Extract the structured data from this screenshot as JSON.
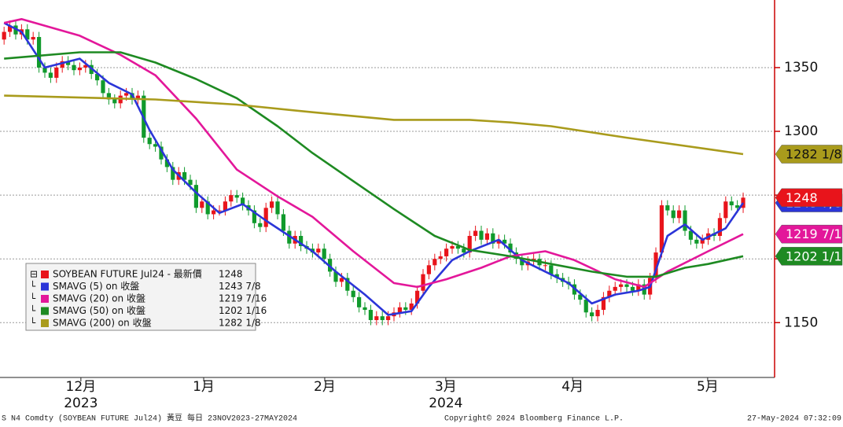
{
  "chart_data": {
    "type": "candlestick",
    "name": "SOYBEAN FUTURE Jul24 - 最新價",
    "up_color": "#e8141b",
    "down_color": "#109a2c",
    "open": [
      1372,
      1378,
      1383,
      1376,
      1380,
      1372,
      1374,
      1350,
      1346,
      1342,
      1350,
      1355,
      1352,
      1348,
      1350,
      1352,
      1345,
      1340,
      1330,
      1325,
      1322,
      1328,
      1330,
      1325,
      1328,
      1295,
      1290,
      1288,
      1278,
      1272,
      1262,
      1268,
      1262,
      1258,
      1240,
      1245,
      1235,
      1238,
      1238,
      1245,
      1250,
      1248,
      1242,
      1238,
      1228,
      1225,
      1240,
      1245,
      1235,
      1222,
      1212,
      1218,
      1210,
      1208,
      1205,
      1208,
      1200,
      1190,
      1182,
      1185,
      1175,
      1170,
      1162,
      1160,
      1152,
      1155,
      1152,
      1155,
      1158,
      1162,
      1160,
      1165,
      1175,
      1188,
      1195,
      1200,
      1202,
      1208,
      1210,
      1208,
      1205,
      1218,
      1222,
      1215,
      1220,
      1212,
      1215,
      1212,
      1205,
      1200,
      1195,
      1198,
      1200,
      1195,
      1195,
      1188,
      1185,
      1182,
      1180,
      1172,
      1168,
      1158,
      1155,
      1160,
      1170,
      1175,
      1178,
      1180,
      1178,
      1175,
      1180,
      1172,
      1185,
      1205,
      1242,
      1238,
      1232,
      1238,
      1222,
      1215,
      1212,
      1215,
      1220,
      1218,
      1232,
      1245,
      1242,
      1240
    ],
    "high": [
      1382,
      1387,
      1387,
      1384,
      1384,
      1378,
      1378,
      1354,
      1350,
      1354,
      1359,
      1359,
      1356,
      1354,
      1356,
      1356,
      1349,
      1344,
      1334,
      1329,
      1332,
      1334,
      1334,
      1332,
      1332,
      1299,
      1294,
      1292,
      1282,
      1276,
      1272,
      1272,
      1266,
      1262,
      1249,
      1249,
      1242,
      1242,
      1249,
      1254,
      1254,
      1252,
      1246,
      1242,
      1232,
      1244,
      1249,
      1249,
      1239,
      1226,
      1222,
      1222,
      1214,
      1212,
      1212,
      1212,
      1204,
      1194,
      1189,
      1189,
      1179,
      1174,
      1166,
      1164,
      1159,
      1159,
      1159,
      1162,
      1166,
      1166,
      1169,
      1179,
      1192,
      1199,
      1204,
      1206,
      1212,
      1214,
      1214,
      1212,
      1222,
      1226,
      1226,
      1224,
      1224,
      1219,
      1219,
      1216,
      1209,
      1204,
      1202,
      1204,
      1204,
      1199,
      1199,
      1192,
      1189,
      1186,
      1184,
      1176,
      1172,
      1162,
      1164,
      1174,
      1179,
      1182,
      1184,
      1184,
      1182,
      1184,
      1184,
      1189,
      1209,
      1246,
      1246,
      1242,
      1242,
      1242,
      1226,
      1219,
      1219,
      1224,
      1224,
      1236,
      1249,
      1249,
      1246,
      1252
    ],
    "low": [
      1368,
      1374,
      1372,
      1372,
      1368,
      1368,
      1346,
      1342,
      1338,
      1338,
      1346,
      1348,
      1344,
      1344,
      1346,
      1341,
      1336,
      1326,
      1321,
      1318,
      1318,
      1324,
      1321,
      1321,
      1291,
      1286,
      1284,
      1274,
      1268,
      1258,
      1258,
      1258,
      1254,
      1236,
      1236,
      1231,
      1231,
      1234,
      1234,
      1241,
      1244,
      1238,
      1234,
      1224,
      1221,
      1221,
      1236,
      1231,
      1218,
      1208,
      1208,
      1206,
      1204,
      1201,
      1201,
      1196,
      1186,
      1178,
      1178,
      1171,
      1166,
      1158,
      1156,
      1148,
      1148,
      1148,
      1148,
      1151,
      1154,
      1156,
      1156,
      1161,
      1171,
      1184,
      1191,
      1196,
      1198,
      1204,
      1204,
      1201,
      1201,
      1214,
      1211,
      1211,
      1208,
      1208,
      1208,
      1201,
      1196,
      1191,
      1191,
      1194,
      1191,
      1191,
      1184,
      1181,
      1178,
      1176,
      1168,
      1164,
      1154,
      1151,
      1151,
      1156,
      1166,
      1171,
      1174,
      1174,
      1171,
      1171,
      1168,
      1168,
      1181,
      1201,
      1234,
      1228,
      1228,
      1218,
      1211,
      1208,
      1208,
      1211,
      1214,
      1214,
      1228,
      1238,
      1236,
      1236
    ],
    "close": [
      1378,
      1383,
      1376,
      1380,
      1372,
      1374,
      1350,
      1346,
      1342,
      1350,
      1355,
      1352,
      1348,
      1350,
      1352,
      1345,
      1340,
      1330,
      1325,
      1322,
      1328,
      1330,
      1325,
      1328,
      1295,
      1290,
      1288,
      1278,
      1272,
      1262,
      1268,
      1262,
      1258,
      1240,
      1245,
      1235,
      1238,
      1238,
      1245,
      1250,
      1248,
      1242,
      1238,
      1228,
      1225,
      1240,
      1245,
      1235,
      1222,
      1212,
      1218,
      1210,
      1208,
      1205,
      1208,
      1200,
      1190,
      1182,
      1185,
      1175,
      1170,
      1162,
      1160,
      1152,
      1155,
      1152,
      1155,
      1158,
      1162,
      1160,
      1165,
      1175,
      1188,
      1195,
      1200,
      1202,
      1208,
      1210,
      1208,
      1205,
      1218,
      1222,
      1215,
      1220,
      1212,
      1215,
      1212,
      1205,
      1200,
      1195,
      1198,
      1200,
      1195,
      1195,
      1188,
      1185,
      1182,
      1180,
      1172,
      1168,
      1158,
      1155,
      1160,
      1170,
      1175,
      1178,
      1180,
      1178,
      1175,
      1180,
      1172,
      1185,
      1205,
      1242,
      1238,
      1232,
      1238,
      1222,
      1215,
      1212,
      1215,
      1220,
      1218,
      1232,
      1245,
      1242,
      1240,
      1248
    ],
    "xlim": [
      -0.7,
      132.4
    ],
    "xticks": [
      {
        "value": 13.2,
        "label": "12月"
      },
      {
        "value": 34.3,
        "label": "1月"
      },
      {
        "value": 55.1,
        "label": "2月"
      },
      {
        "value": 75.9,
        "label": "3月"
      },
      {
        "value": 97.7,
        "label": "4月"
      },
      {
        "value": 120.9,
        "label": "5月"
      }
    ],
    "year_labels": [
      {
        "value": 13.2,
        "label": "2023"
      },
      {
        "value": 75.9,
        "label": "2024"
      }
    ],
    "ylim": [
      1107,
      1403
    ],
    "yticks": [
      1150,
      1200,
      1250,
      1300,
      1350
    ],
    "grid": true,
    "series": [
      {
        "name": "SMAVG (5)  on 收盤",
        "color": "#2b35d8",
        "last_value_label": "1243 7/8",
        "x": [
          0,
          3,
          7,
          13,
          18,
          22,
          25,
          29,
          33,
          37,
          41,
          45,
          49,
          53,
          57,
          62,
          66,
          70,
          73,
          77,
          80,
          85,
          89,
          93,
          97,
          101,
          105,
          109,
          111,
          114,
          117,
          120,
          124,
          127
        ],
        "values": [
          1385,
          1378,
          1350,
          1357,
          1338,
          1329,
          1301,
          1270,
          1252,
          1236,
          1243,
          1230,
          1218,
          1206,
          1190,
          1172,
          1156,
          1159,
          1178,
          1199,
          1206,
          1215,
          1199,
          1190,
          1181,
          1165,
          1172,
          1175,
          1178,
          1218,
          1227,
          1215,
          1224,
          1243.875
        ]
      },
      {
        "name": "SMAVG (20)  on 收盤",
        "color": "#e3179a",
        "last_value_label": "1219 7/16",
        "x": [
          0,
          3,
          13,
          20,
          26,
          33,
          40,
          47,
          53,
          60,
          67,
          71,
          76,
          82,
          87,
          93,
          98,
          105,
          110,
          114,
          121,
          127
        ],
        "values": [
          1385,
          1388,
          1375,
          1360,
          1344,
          1310,
          1270,
          1249,
          1233,
          1206,
          1181,
          1178,
          1184,
          1193,
          1202,
          1206,
          1199,
          1184,
          1178,
          1190,
          1206,
          1219.4375
        ]
      },
      {
        "name": "SMAVG (50)  on 收盤",
        "color": "#1e8a22",
        "last_value_label": "1202 1/16",
        "x": [
          0,
          13,
          20,
          26,
          33,
          40,
          47,
          53,
          60,
          67,
          74,
          80,
          87,
          94,
          101,
          107,
          112,
          117,
          121,
          127
        ],
        "values": [
          1357,
          1362,
          1362,
          1354,
          1341,
          1326,
          1304,
          1283,
          1261,
          1239,
          1218,
          1207,
          1202,
          1196,
          1190,
          1186,
          1186,
          1193,
          1196,
          1202.0625
        ]
      },
      {
        "name": "SMAVG (200)  on 收盤",
        "color": "#a99b1c",
        "last_value_label": "1282 1/8",
        "x": [
          0,
          26,
          40,
          53,
          67,
          80,
          87,
          94,
          107,
          121,
          127
        ],
        "values": [
          1328,
          1325,
          1321,
          1315,
          1309,
          1309,
          1307,
          1304,
          1295,
          1286,
          1282.125
        ]
      }
    ]
  },
  "footer": {
    "left": "S N4 Comdty (SOYBEAN FUTURE    Jul24) 黃豆  每日 23NOV2023-27MAY2024",
    "center": "Copyright© 2024 Bloomberg Finance L.P.",
    "right": "27-May-2024 07:32:09"
  }
}
